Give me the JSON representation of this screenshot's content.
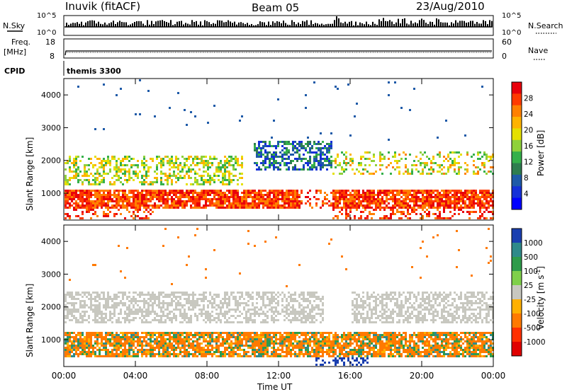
{
  "header": {
    "station": "Inuvik (fitACF)",
    "beam": "Beam 05",
    "date": "23/Aug/2010"
  },
  "top_panels": {
    "nsky_label": "N.Sky",
    "nsky_ticks": [
      "10^5",
      "10^0"
    ],
    "nsearch_label": "N.Search",
    "freq_label_1": "Freq.",
    "freq_label_2": "[MHz]",
    "freq_ticks": [
      "18",
      "8"
    ],
    "nave_label": "Nave",
    "nave_ticks": [
      "60",
      "0"
    ],
    "cpid_label": "CPID",
    "cpid_value": "themis 3300"
  },
  "chart_data": [
    {
      "type": "heatmap",
      "name": "power",
      "ylabel": "Slant Range [km]",
      "xlabel": "Time UT",
      "x_ticks": [
        "00:00",
        "04:00",
        "08:00",
        "12:00",
        "16:00",
        "20:00",
        "00:00"
      ],
      "y_ticks": [
        1000,
        2000,
        3000,
        4000
      ],
      "ylim": [
        180,
        4500
      ],
      "colorbar": {
        "label": "Power [dB]",
        "tick_labels": [
          "28",
          "24",
          "20",
          "16",
          "12",
          "8",
          "4"
        ],
        "colors": [
          "#e8000b",
          "#ff3a00",
          "#ff8000",
          "#ffb300",
          "#e5e000",
          "#8fd13a",
          "#35b04a",
          "#2e7d4f",
          "#1e5aa8",
          "#1430d8",
          "#0000ff"
        ]
      },
      "features": [
        {
          "band_km": [
            600,
            1150
          ],
          "time_h": [
            0,
            24
          ],
          "dominant": "red-orange (24-28 dB)"
        },
        {
          "band_km": [
            1300,
            2200
          ],
          "time_h": [
            0,
            10
          ],
          "dominant": "yellow-green (12-20 dB)"
        },
        {
          "band_km": [
            1700,
            2600
          ],
          "time_h": [
            11,
            15
          ],
          "dominant": "blue-green (4-16 dB)"
        }
      ]
    },
    {
      "type": "heatmap",
      "name": "velocity",
      "ylabel": "Slant Range [km]",
      "xlabel": "Time UT",
      "x_ticks": [
        "00:00",
        "04:00",
        "08:00",
        "12:00",
        "16:00",
        "20:00",
        "00:00"
      ],
      "y_ticks": [
        1000,
        2000,
        3000,
        4000
      ],
      "ylim": [
        180,
        4500
      ],
      "colorbar": {
        "label": "Velocity [m s",
        "label_sup": "-1",
        "label_end": "]",
        "tick_labels": [
          "1000",
          "500",
          "100",
          "25",
          "-25",
          "-100",
          "-500",
          "-1000"
        ],
        "colors": [
          "#1a3fb0",
          "#2f8a8a",
          "#2e9b4a",
          "#7fd04a",
          "#c8c8c0",
          "#ffb000",
          "#ff7a00",
          "#ff3000",
          "#e00000"
        ]
      },
      "features": [
        {
          "band_km": [
            1500,
            2500
          ],
          "time_h": [
            0,
            24
          ],
          "dominant": "grey (-25 to 25 m/s)"
        },
        {
          "band_km": [
            500,
            1300
          ],
          "time_h": [
            0,
            24
          ],
          "dominant": "orange (-100 to -500 m/s) with green patches"
        }
      ]
    }
  ]
}
